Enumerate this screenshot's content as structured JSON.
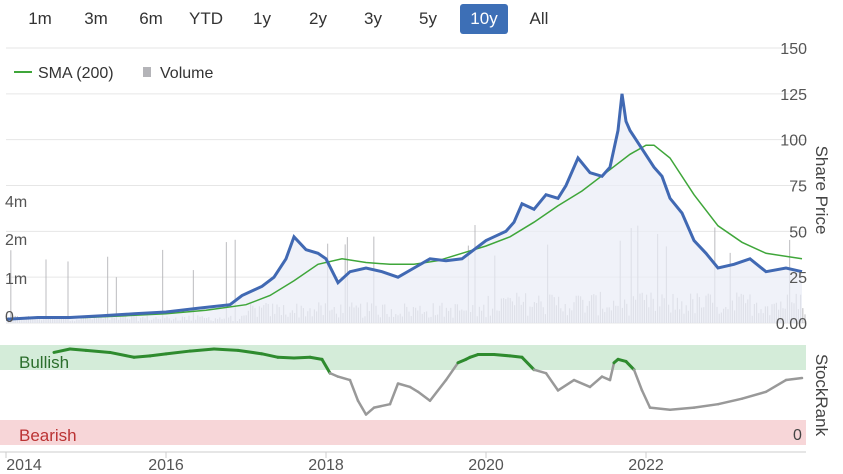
{
  "range_buttons": [
    {
      "label": "1m",
      "active": false
    },
    {
      "label": "3m",
      "active": false
    },
    {
      "label": "6m",
      "active": false
    },
    {
      "label": "YTD",
      "active": false
    },
    {
      "label": "1y",
      "active": false
    },
    {
      "label": "2y",
      "active": false
    },
    {
      "label": "3y",
      "active": false
    },
    {
      "label": "5y",
      "active": false
    },
    {
      "label": "10y",
      "active": true
    },
    {
      "label": "All",
      "active": false
    }
  ],
  "legend": {
    "sma_label": "SMA (200)",
    "volume_label": "Volume"
  },
  "colors": {
    "price": "#4169b3",
    "sma": "#3fa63a",
    "volume": "#b4b4b8",
    "stockrank_high": "#2e8b2e",
    "stockrank_low": "#999999",
    "bullish_band": "#d4ecd9",
    "bearish_band": "#f7d6d8",
    "accent": "#3d6fb6"
  },
  "chart_data": [
    {
      "type": "line",
      "name": "price-chart",
      "ylabel": "Share Price",
      "ylim": [
        0,
        150
      ],
      "yticks": [
        "0.00",
        "25",
        "50",
        "75",
        "100",
        "125",
        "150"
      ],
      "volume_axis": {
        "ticks": [
          "0",
          "1m",
          "2m",
          "4m"
        ],
        "scale": "nonlinear"
      },
      "x_ticks": [
        "2014",
        "2016",
        "2018",
        "2020",
        "2022"
      ],
      "series": [
        {
          "name": "Price",
          "x": [
            2014.0,
            2014.4,
            2014.8,
            2015.2,
            2015.6,
            2016.0,
            2016.4,
            2016.8,
            2016.95,
            2017.1,
            2017.2,
            2017.35,
            2017.5,
            2017.6,
            2017.75,
            2017.9,
            2018.0,
            2018.15,
            2018.3,
            2018.5,
            2018.7,
            2018.9,
            2019.1,
            2019.3,
            2019.5,
            2019.7,
            2019.85,
            2020.0,
            2020.1,
            2020.25,
            2020.35,
            2020.45,
            2020.6,
            2020.75,
            2020.9,
            2021.0,
            2021.15,
            2021.3,
            2021.45,
            2021.55,
            2021.65,
            2021.7,
            2021.75,
            2021.8,
            2021.95,
            2022.1,
            2022.2,
            2022.3,
            2022.45,
            2022.6,
            2022.75,
            2022.9,
            2023.1,
            2023.3,
            2023.5,
            2023.75,
            2023.95
          ],
          "y": [
            2,
            3,
            3,
            4,
            5,
            6,
            8,
            10,
            15,
            18,
            20,
            25,
            35,
            47,
            40,
            38,
            35,
            22,
            28,
            30,
            28,
            25,
            30,
            35,
            34,
            35,
            40,
            45,
            47,
            50,
            55,
            65,
            62,
            70,
            68,
            75,
            90,
            82,
            80,
            85,
            105,
            125,
            110,
            105,
            95,
            85,
            80,
            68,
            60,
            45,
            38,
            30,
            32,
            35,
            28,
            30,
            28
          ]
        },
        {
          "name": "SMA (200)",
          "x": [
            2014.0,
            2014.5,
            2015.0,
            2015.5,
            2016.0,
            2016.5,
            2017.0,
            2017.3,
            2017.6,
            2017.9,
            2018.2,
            2018.5,
            2018.8,
            2019.1,
            2019.4,
            2019.7,
            2020.0,
            2020.3,
            2020.6,
            2020.9,
            2021.2,
            2021.5,
            2021.8,
            2022.0,
            2022.1,
            2022.3,
            2022.6,
            2022.9,
            2023.2,
            2023.5,
            2023.95
          ],
          "y": [
            2,
            3,
            3,
            4,
            5,
            7,
            10,
            15,
            23,
            32,
            35,
            33,
            32,
            32,
            34,
            38,
            42,
            47,
            55,
            64,
            72,
            82,
            92,
            97,
            97,
            90,
            70,
            53,
            44,
            38,
            35
          ]
        }
      ]
    },
    {
      "type": "line",
      "name": "stockrank-chart",
      "ylabel": "StockRank",
      "ylim": [
        0,
        100
      ],
      "yticks": [
        "0"
      ],
      "bands": [
        {
          "label": "Bullish"
        },
        {
          "label": "Bearish"
        }
      ],
      "x_ticks": [
        "2014",
        "2016",
        "2018",
        "2020",
        "2022"
      ],
      "series": [
        {
          "name": "StockRank",
          "x": [
            2014.6,
            2014.8,
            2015.0,
            2015.3,
            2015.6,
            2015.8,
            2016.0,
            2016.3,
            2016.6,
            2016.9,
            2017.2,
            2017.4,
            2017.6,
            2017.8,
            2017.95,
            2018.05,
            2018.15,
            2018.3,
            2018.4,
            2018.5,
            2018.6,
            2018.8,
            2018.9,
            2019.05,
            2019.15,
            2019.3,
            2019.5,
            2019.65,
            2019.75,
            2019.8,
            2019.9,
            2020.1,
            2020.3,
            2020.45,
            2020.6,
            2020.75,
            2020.9,
            2021.1,
            2021.3,
            2021.45,
            2021.55,
            2021.6,
            2021.65,
            2021.75,
            2021.85,
            2021.95,
            2022.05,
            2022.3,
            2022.6,
            2022.9,
            2023.2,
            2023.5,
            2023.75,
            2023.95
          ],
          "y": [
            95,
            100,
            98,
            95,
            88,
            90,
            93,
            97,
            100,
            98,
            93,
            88,
            87,
            88,
            85,
            65,
            60,
            55,
            25,
            5,
            15,
            20,
            50,
            45,
            38,
            25,
            55,
            80,
            85,
            88,
            92,
            92,
            90,
            88,
            70,
            65,
            40,
            55,
            45,
            60,
            55,
            80,
            85,
            82,
            70,
            40,
            15,
            12,
            15,
            20,
            28,
            38,
            55,
            58
          ]
        }
      ]
    }
  ]
}
